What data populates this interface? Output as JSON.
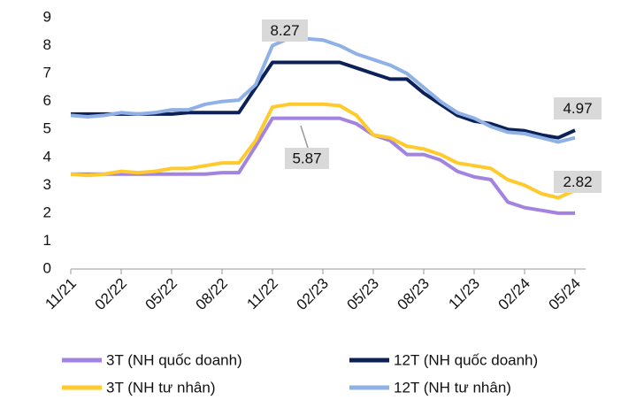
{
  "chart_data": {
    "type": "line",
    "categories": [
      "11/21",
      null,
      null,
      "02/22",
      null,
      null,
      "05/22",
      null,
      null,
      "08/22",
      null,
      null,
      "11/22",
      null,
      null,
      "02/23",
      null,
      null,
      "05/23",
      null,
      null,
      "08/23",
      null,
      null,
      "11/23",
      null,
      null,
      "02/24",
      null,
      null,
      "05/24"
    ],
    "series": [
      {
        "name": "3T (NH quốc doanh)",
        "color": "#a284e0",
        "values": [
          3.4,
          3.4,
          3.4,
          3.4,
          3.4,
          3.4,
          3.4,
          3.4,
          3.4,
          3.45,
          3.45,
          4.4,
          5.4,
          5.4,
          5.4,
          5.4,
          5.4,
          5.2,
          4.8,
          4.6,
          4.1,
          4.1,
          3.9,
          3.5,
          3.3,
          3.2,
          2.4,
          2.2,
          2.1,
          2.0,
          2.0
        ]
      },
      {
        "name": "3T (NH tư nhân)",
        "color": "#ffca2c",
        "values": [
          3.4,
          3.35,
          3.4,
          3.5,
          3.45,
          3.5,
          3.6,
          3.6,
          3.7,
          3.8,
          3.8,
          4.6,
          5.8,
          5.9,
          5.9,
          5.9,
          5.85,
          5.5,
          4.8,
          4.7,
          4.4,
          4.3,
          4.1,
          3.8,
          3.7,
          3.6,
          3.2,
          3.0,
          2.7,
          2.55,
          2.82
        ]
      },
      {
        "name": "12T (NH quốc doanh)",
        "color": "#0b2157",
        "values": [
          5.55,
          5.55,
          5.55,
          5.55,
          5.55,
          5.55,
          5.55,
          5.6,
          5.6,
          5.6,
          5.6,
          6.5,
          7.4,
          7.4,
          7.4,
          7.4,
          7.4,
          7.2,
          7.0,
          6.8,
          6.8,
          6.3,
          5.9,
          5.5,
          5.3,
          5.2,
          5.0,
          4.95,
          4.8,
          4.7,
          4.97
        ]
      },
      {
        "name": "12T (NH tư nhân)",
        "color": "#8fb1e6",
        "values": [
          5.5,
          5.45,
          5.5,
          5.6,
          5.55,
          5.6,
          5.7,
          5.7,
          5.9,
          6.0,
          6.05,
          6.6,
          8.0,
          8.27,
          8.25,
          8.2,
          8.0,
          7.7,
          7.5,
          7.3,
          7.0,
          6.5,
          6.0,
          5.6,
          5.4,
          5.1,
          4.9,
          4.85,
          4.7,
          4.55,
          4.7
        ]
      }
    ],
    "annotations": [
      "8.27",
      "5.87",
      "4.97",
      "2.82"
    ],
    "ylim": [
      0,
      9
    ],
    "yticks": [
      0,
      1,
      2,
      3,
      4,
      5,
      6,
      7,
      8,
      9
    ],
    "grid": false
  }
}
